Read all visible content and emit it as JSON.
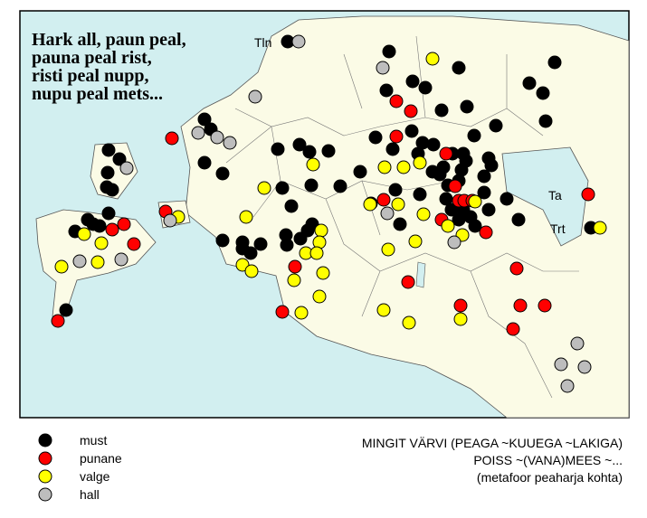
{
  "title_lines": [
    "Hark all, paun peal,",
    "pauna peal rist,",
    "risti peal nupp,",
    "nupu peal mets..."
  ],
  "places": [
    "Tln",
    "Ta",
    "Trt"
  ],
  "legend": [
    {
      "name": "must",
      "color": "#000000"
    },
    {
      "name": "punane",
      "color": "#ff0000"
    },
    {
      "name": "valge",
      "color": "#ffff00"
    },
    {
      "name": "hall",
      "color": "#bdbdbd"
    }
  ],
  "caption_lines": [
    "MINGIT VÄRVI (PEAGA ~KUUEGA ~LAKIGA)",
    "POISS ~(VANA)MEES ~...",
    "(metafoor peaharja kohta)"
  ]
}
